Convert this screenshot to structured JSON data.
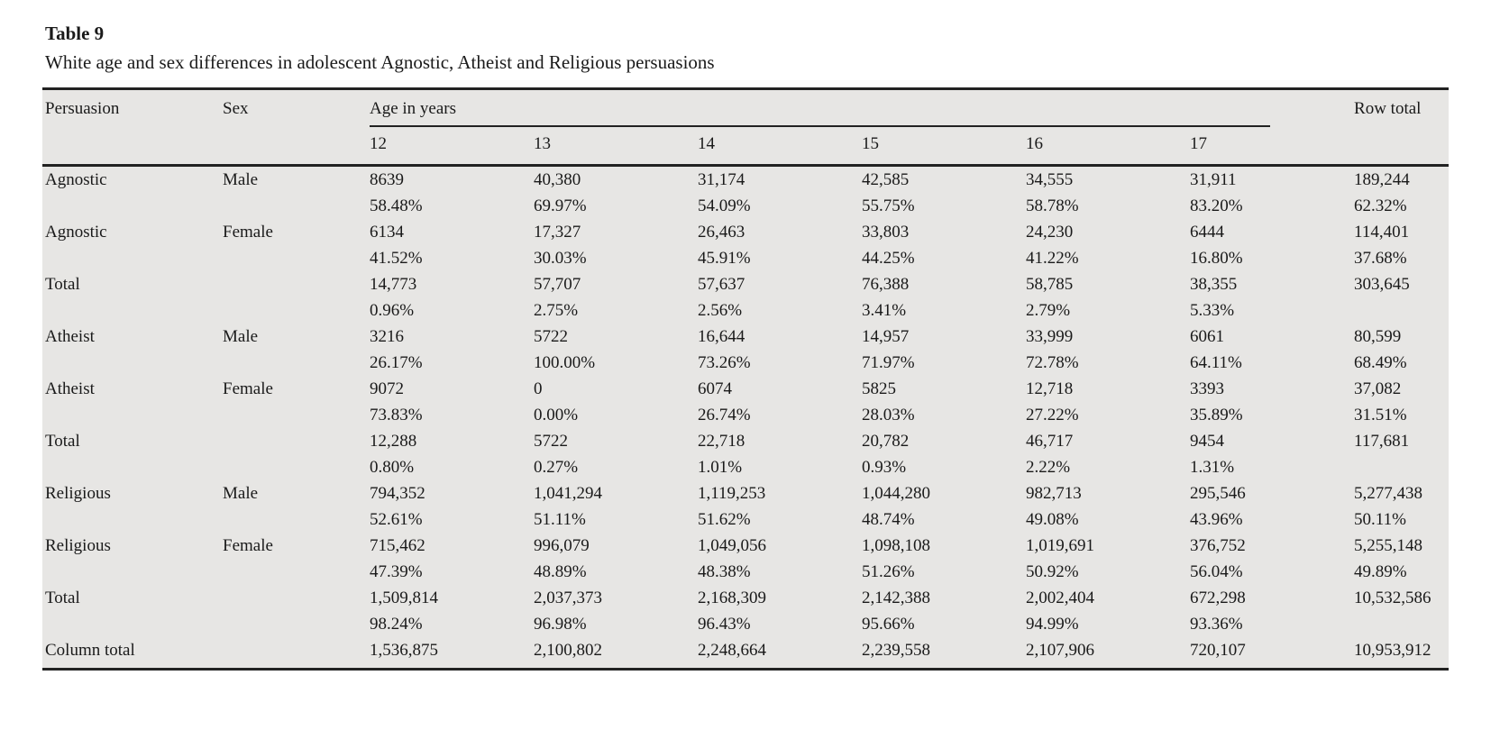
{
  "title": "Table 9",
  "subtitle": "White age and sex differences in adolescent Agnostic, Atheist and Religious persuasions",
  "colors": {
    "table_background": "#e7e6e4",
    "rule": "#222222",
    "text": "#1a1a1a",
    "page_background": "#ffffff"
  },
  "table": {
    "col_headers": {
      "persuasion": "Persuasion",
      "sex": "Sex",
      "age_group": "Age in years",
      "ages": [
        "12",
        "13",
        "14",
        "15",
        "16",
        "17"
      ],
      "row_total": "Row total"
    },
    "rows": [
      {
        "persuasion": "Agnostic",
        "sex": "Male",
        "counts": [
          "8639",
          "40,380",
          "31,174",
          "42,585",
          "34,555",
          "31,911"
        ],
        "row_total": "189,244",
        "percents": [
          "58.48%",
          "69.97%",
          "54.09%",
          "55.75%",
          "58.78%",
          "83.20%"
        ],
        "row_total_percent": "62.32%"
      },
      {
        "persuasion": "Agnostic",
        "sex": "Female",
        "counts": [
          "6134",
          "17,327",
          "26,463",
          "33,803",
          "24,230",
          "6444"
        ],
        "row_total": "114,401",
        "percents": [
          "41.52%",
          "30.03%",
          "45.91%",
          "44.25%",
          "41.22%",
          "16.80%"
        ],
        "row_total_percent": "37.68%"
      },
      {
        "persuasion": "Total",
        "sex": "",
        "counts": [
          "14,773",
          "57,707",
          "57,637",
          "76,388",
          "58,785",
          "38,355"
        ],
        "row_total": "303,645",
        "percents": [
          "0.96%",
          "2.75%",
          "2.56%",
          "3.41%",
          "2.79%",
          "5.33%"
        ],
        "row_total_percent": ""
      },
      {
        "persuasion": "Atheist",
        "sex": "Male",
        "counts": [
          "3216",
          "5722",
          "16,644",
          "14,957",
          "33,999",
          "6061"
        ],
        "row_total": "80,599",
        "percents": [
          "26.17%",
          "100.00%",
          "73.26%",
          "71.97%",
          "72.78%",
          "64.11%"
        ],
        "row_total_percent": "68.49%"
      },
      {
        "persuasion": "Atheist",
        "sex": "Female",
        "counts": [
          "9072",
          "0",
          "6074",
          "5825",
          "12,718",
          "3393"
        ],
        "row_total": "37,082",
        "percents": [
          "73.83%",
          "0.00%",
          "26.74%",
          "28.03%",
          "27.22%",
          "35.89%"
        ],
        "row_total_percent": "31.51%"
      },
      {
        "persuasion": "Total",
        "sex": "",
        "counts": [
          "12,288",
          "5722",
          "22,718",
          "20,782",
          "46,717",
          "9454"
        ],
        "row_total": "117,681",
        "percents": [
          "0.80%",
          "0.27%",
          "1.01%",
          "0.93%",
          "2.22%",
          "1.31%"
        ],
        "row_total_percent": ""
      },
      {
        "persuasion": "Religious",
        "sex": "Male",
        "counts": [
          "794,352",
          "1,041,294",
          "1,119,253",
          "1,044,280",
          "982,713",
          "295,546"
        ],
        "row_total": "5,277,438",
        "percents": [
          "52.61%",
          "51.11%",
          "51.62%",
          "48.74%",
          "49.08%",
          "43.96%"
        ],
        "row_total_percent": "50.11%"
      },
      {
        "persuasion": "Religious",
        "sex": "Female",
        "counts": [
          "715,462",
          "996,079",
          "1,049,056",
          "1,098,108",
          "1,019,691",
          "376,752"
        ],
        "row_total": "5,255,148",
        "percents": [
          "47.39%",
          "48.89%",
          "48.38%",
          "51.26%",
          "50.92%",
          "56.04%"
        ],
        "row_total_percent": "49.89%"
      },
      {
        "persuasion": "Total",
        "sex": "",
        "counts": [
          "1,509,814",
          "2,037,373",
          "2,168,309",
          "2,142,388",
          "2,002,404",
          "672,298"
        ],
        "row_total": "10,532,586",
        "percents": [
          "98.24%",
          "96.98%",
          "96.43%",
          "95.66%",
          "94.99%",
          "93.36%"
        ],
        "row_total_percent": ""
      },
      {
        "persuasion": "Column total",
        "sex": "",
        "counts": [
          "1,536,875",
          "2,100,802",
          "2,248,664",
          "2,239,558",
          "2,107,906",
          "720,107"
        ],
        "row_total": "10,953,912",
        "percents": null,
        "row_total_percent": ""
      }
    ]
  }
}
